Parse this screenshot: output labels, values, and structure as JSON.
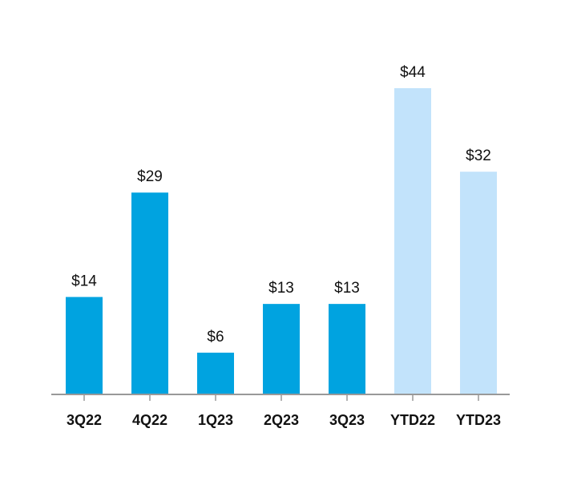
{
  "chart_data": {
    "type": "bar",
    "title": "",
    "xlabel": "",
    "ylabel": "",
    "categories": [
      "3Q22",
      "4Q22",
      "1Q23",
      "2Q23",
      "3Q23",
      "YTD22",
      "YTD23"
    ],
    "values": [
      14,
      29,
      6,
      13,
      13,
      44,
      32
    ],
    "value_labels": [
      "$14",
      "$29",
      "$6",
      "$13",
      "$13",
      "$44",
      "$32"
    ],
    "ylim": [
      0,
      44
    ],
    "grid": false,
    "colors": {
      "quarterly": "#00a3e0",
      "ytd": "#c2e3fb",
      "axis": "#999999"
    },
    "bar_styles": [
      "quarterly",
      "quarterly",
      "quarterly",
      "quarterly",
      "quarterly",
      "ytd",
      "ytd"
    ]
  }
}
